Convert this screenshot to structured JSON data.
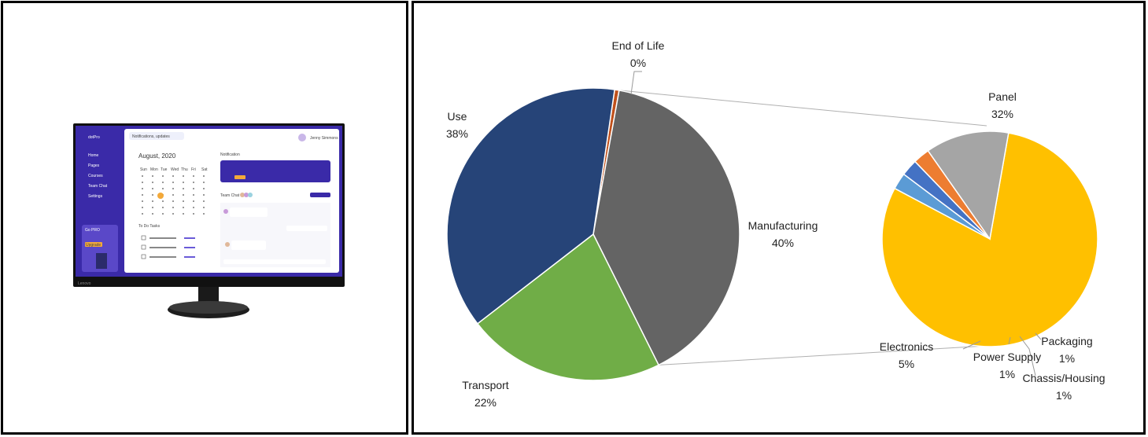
{
  "monitor": {
    "brand": "Lenovo",
    "app_name": "dotPro",
    "search_placeholder": "Notifications, updates",
    "user_name": "Jenny Simmons",
    "calendar_month": "August, 2020",
    "weekdays": [
      "Sun",
      "Mon",
      "Tue",
      "Wed",
      "Thu",
      "Fri",
      "Sat"
    ],
    "notification_title": "Notification",
    "team_chat_title": "Team Chat",
    "todo_title": "To Do Tasks",
    "sidebar_items": [
      "Home",
      "Pages",
      "Courses",
      "Team Chat",
      "Settings"
    ],
    "promo_title": "Go PRO",
    "promo_button": "Upgrade"
  },
  "chart_data": [
    {
      "type": "pie",
      "name": "lifecycle",
      "categories": [
        "End of Life",
        "Manufacturing",
        "Transport",
        "Use"
      ],
      "values": [
        0.5,
        40,
        22,
        38
      ],
      "labels": [
        "0%",
        "40%",
        "22%",
        "38%"
      ],
      "colors": [
        "#C0501B",
        "#646464",
        "#70AD47",
        "#264478"
      ]
    },
    {
      "type": "pie",
      "name": "manufacturing-breakdown",
      "categories": [
        "Panel",
        "Packaging",
        "Chassis/Housing",
        "Power Supply",
        "Electronics"
      ],
      "values": [
        32,
        1,
        1,
        1,
        5
      ],
      "labels": [
        "32%",
        "1%",
        "1%",
        "1%",
        "5%"
      ],
      "colors": [
        "#FFC000",
        "#5B9BD5",
        "#4472C4",
        "#ED7D31",
        "#A5A5A5"
      ]
    }
  ]
}
